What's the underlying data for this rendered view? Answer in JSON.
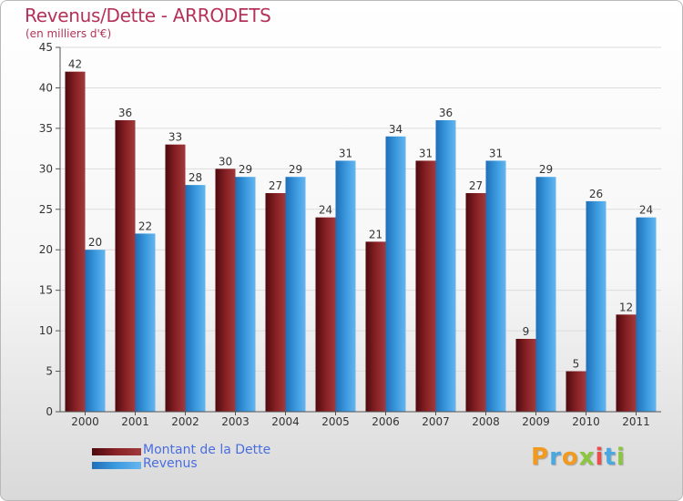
{
  "title": "Revenus/Dette - ARRODETS",
  "subtitle": "(en milliers d'€)",
  "logo": {
    "text": "Proxiti",
    "letter_colors": [
      "#f29a1f",
      "#4aa8e0",
      "#f29a1f",
      "#8cc63f",
      "#e84e4e",
      "#4aa8e0",
      "#8cc63f"
    ]
  },
  "colors": {
    "dette": "#7a1a1e",
    "revenus": "#3c9be0",
    "title": "#b5325a",
    "legend_text": "#4a6de0"
  },
  "legend": {
    "dette_label": "Montant de la Dette",
    "revenus_label": "Revenus"
  },
  "chart_data": {
    "type": "bar",
    "title": "Revenus/Dette - ARRODETS",
    "subtitle": "(en milliers d'€)",
    "categories": [
      "2000",
      "2001",
      "2002",
      "2003",
      "2004",
      "2005",
      "2006",
      "2007",
      "2008",
      "2009",
      "2010",
      "2011"
    ],
    "series": [
      {
        "name": "Montant de la Dette",
        "values": [
          42,
          36,
          33,
          30,
          27,
          24,
          21,
          31,
          27,
          9,
          5,
          12
        ]
      },
      {
        "name": "Revenus",
        "values": [
          20,
          22,
          28,
          29,
          29,
          31,
          34,
          36,
          31,
          29,
          26,
          24
        ]
      }
    ],
    "ylim": [
      0,
      45
    ],
    "yticks": [
      "0",
      "5",
      "10",
      "15",
      "20",
      "25",
      "30",
      "35",
      "40",
      "45"
    ],
    "grid": true,
    "legend_position": "bottom-left"
  }
}
